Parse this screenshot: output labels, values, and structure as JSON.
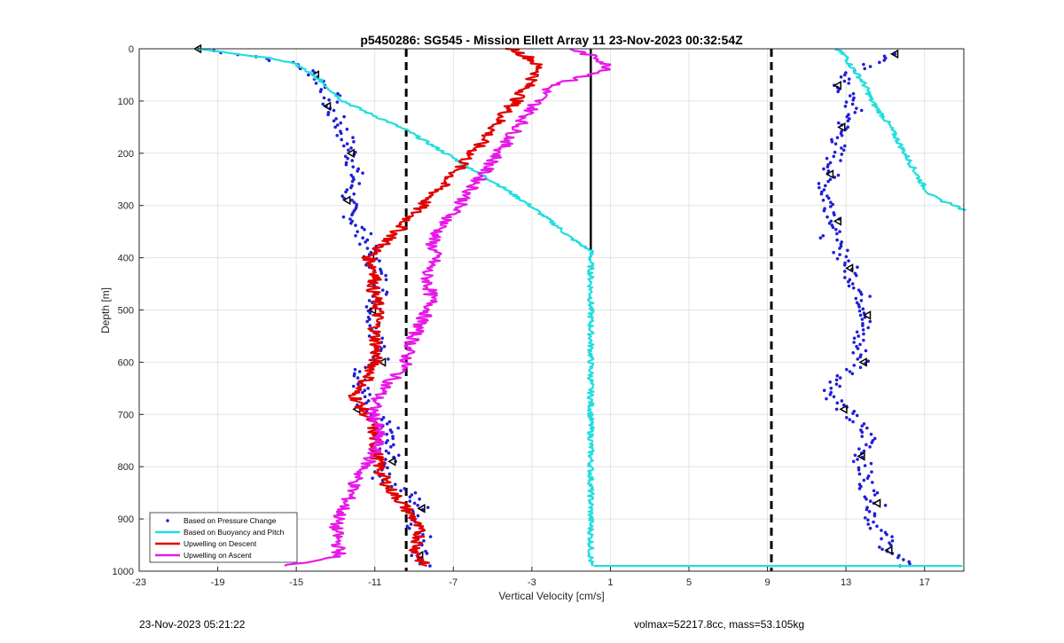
{
  "chart_data": {
    "type": "line",
    "title": "p5450286: SG545 - Mission Ellett Array 11 23-Nov-2023 00:32:54Z",
    "xlabel": "Vertical Velocity [cm/s]",
    "ylabel": "Depth [m]",
    "xlim": [
      -23,
      19
    ],
    "ylim": [
      0,
      1000
    ],
    "y_reversed": true,
    "xticks": [
      -23,
      -19,
      -15,
      -11,
      -7,
      -3,
      1,
      5,
      9,
      13,
      17
    ],
    "yticks": [
      0,
      100,
      200,
      300,
      400,
      500,
      600,
      700,
      800,
      900,
      1000
    ],
    "grid": true,
    "legend_position": "bottom-left",
    "reference_lines": [
      {
        "x": -9.4,
        "style": "dashed",
        "color": "#000000"
      },
      {
        "x": 9.2,
        "style": "dashed",
        "color": "#000000"
      },
      {
        "x": 0,
        "style": "solid",
        "color": "#000000",
        "y_range": [
          0,
          385
        ]
      }
    ],
    "series": [
      {
        "name": "Based on Pressure Change",
        "style": "points",
        "color": "#1f1fd6",
        "marker_edge": "#000000",
        "segments": [
          {
            "depth": [
              0,
              15,
              30,
              50,
              70,
              90,
              110,
              140,
              170,
              200,
              230,
              260,
              290,
              320,
              360,
              400,
              430,
              460,
              500,
              540,
              570,
              600,
              620,
              660,
              690,
              720,
              760,
              790,
              820,
              850,
              880,
              910,
              940,
              970,
              990
            ],
            "vel": [
              -20,
              -17,
              -15,
              -14,
              -13.6,
              -13.2,
              -13.4,
              -12.8,
              -12.5,
              -12.2,
              -12,
              -12.1,
              -12.4,
              -12.2,
              -11.5,
              -11.2,
              -10.8,
              -10.6,
              -11.1,
              -10.8,
              -10.9,
              -10.6,
              -12,
              -11.6,
              -11.9,
              -10.2,
              -10.4,
              -10.1,
              -10.8,
              -9.3,
              -8.6,
              -9.0,
              -8.4,
              -8.7,
              -8.4
            ]
          },
          {
            "depth": [
              10,
              30,
              50,
              70,
              90,
              120,
              150,
              180,
              210,
              240,
              270,
              300,
              330,
              360,
              390,
              420,
              450,
              480,
              510,
              540,
              570,
              600,
              630,
              660,
              690,
              720,
              750,
              780,
              810,
              840,
              870,
              900,
              930,
              960,
              990
            ],
            "vel": [
              15.5,
              14,
              13.2,
              12.6,
              13.1,
              13.4,
              12.8,
              12.6,
              12.4,
              12.2,
              11.9,
              12.2,
              12.6,
              12.1,
              12.8,
              13.2,
              13.5,
              13.9,
              14.1,
              13.7,
              13.6,
              13.9,
              12.8,
              12.2,
              12.9,
              13.6,
              14.3,
              13.8,
              13.9,
              14.1,
              14.6,
              14.3,
              14.9,
              15.2,
              16
            ]
          }
        ]
      },
      {
        "name": "Based on Buoyancy and Pitch",
        "style": "line",
        "color": "#22dede",
        "segments": [
          {
            "depth": [
              0,
              10,
              20,
              30,
              45,
              60,
              80,
              100,
              120,
              140,
              160,
              180,
              200,
              220,
              240,
              260,
              280,
              300,
              320,
              340,
              360,
              375,
              385,
              385,
              990
            ],
            "vel": [
              -20,
              -18,
              -16,
              -15,
              -14.4,
              -13.8,
              -13.2,
              -12.6,
              -11.5,
              -10.3,
              -9.2,
              -8.3,
              -7.4,
              -6.5,
              -5.6,
              -4.7,
              -3.9,
              -3.1,
              -2.4,
              -1.7,
              -1.1,
              -0.5,
              -0.1,
              0,
              0
            ]
          },
          {
            "depth": [
              990,
              990
            ],
            "vel": [
              0,
              19
            ]
          },
          {
            "depth": [
              0,
              15,
              30,
              45,
              60,
              80,
              100,
              120,
              140,
              160,
              180,
              200,
              220,
              240,
              260,
              280,
              290,
              300,
              310
            ],
            "vel": [
              12.5,
              13,
              13.2,
              13.5,
              13.8,
              14.1,
              14.3,
              14.7,
              15.1,
              15.4,
              15.7,
              16,
              16.3,
              16.6,
              16.9,
              17.3,
              17.8,
              18.6,
              19
            ]
          }
        ]
      },
      {
        "name": "Upwelling on Descent",
        "style": "line",
        "color": "#e00000",
        "segments": [
          {
            "depth": [
              0,
              20,
              40,
              70,
              100,
              120,
              150,
              180,
              210,
              240,
              270,
              300,
              330,
              360,
              385,
              400,
              430,
              460,
              500,
              540,
              570,
              600,
              630,
              660,
              690,
              720,
              750,
              780,
              810,
              840,
              870,
              900,
              930,
              960,
              990
            ],
            "vel": [
              -4,
              -3,
              -2.6,
              -3.2,
              -3.8,
              -4.3,
              -4.9,
              -5.6,
              -6.3,
              -7,
              -7.8,
              -8.6,
              -9.4,
              -10.1,
              -10.9,
              -11.3,
              -10.9,
              -11.1,
              -10.8,
              -11,
              -10.9,
              -11,
              -11.3,
              -12.1,
              -11.6,
              -11.1,
              -11,
              -10.9,
              -10.7,
              -10.3,
              -9.6,
              -9.0,
              -8.7,
              -8.9,
              -8.5
            ]
          }
        ]
      },
      {
        "name": "Upwelling on Ascent",
        "style": "line",
        "color": "#e818e8",
        "segments": [
          {
            "depth": [
              0,
              20,
              40,
              70,
              100,
              130,
              160,
              190,
              220,
              250,
              280,
              310,
              340,
              370,
              400,
              430,
              460,
              490,
              520,
              550,
              580,
              610,
              640,
              670,
              700,
              730,
              760,
              790,
              820,
              850,
              880,
              910,
              940,
              970,
              990
            ],
            "vel": [
              -1,
              0.5,
              1,
              -2,
              -2.7,
              -3.3,
              -3.9,
              -4.5,
              -5.1,
              -5.7,
              -6.3,
              -6.9,
              -7.6,
              -8.1,
              -7.9,
              -8.4,
              -8.2,
              -8.1,
              -8.6,
              -9.0,
              -9.3,
              -9.5,
              -10.3,
              -10.9,
              -11.1,
              -10.8,
              -10.9,
              -11.3,
              -11.9,
              -12.2,
              -12.6,
              -13.0,
              -12.9,
              -12.8,
              -15.5
            ]
          }
        ]
      }
    ]
  },
  "footer": {
    "timestamp": "23-Nov-2023 05:21:22",
    "stats": "volmax=52217.8cc, mass=53.105kg"
  }
}
